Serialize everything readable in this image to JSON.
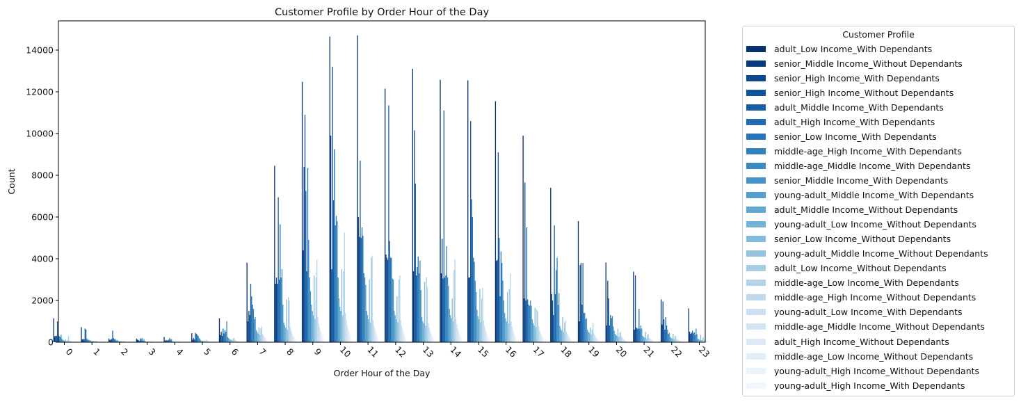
{
  "chart_data": {
    "type": "bar",
    "title": "Customer Profile by Order Hour of the Day",
    "xlabel": "Order Hour of the Day",
    "ylabel": "Count",
    "ylim": [
      0,
      15400
    ],
    "yticks": [
      "0",
      "2000",
      "4000",
      "6000",
      "8000",
      "10000",
      "12000",
      "14000"
    ],
    "categories": [
      "0",
      "1",
      "2",
      "3",
      "4",
      "5",
      "6",
      "7",
      "8",
      "9",
      "10",
      "11",
      "12",
      "13",
      "14",
      "15",
      "16",
      "17",
      "18",
      "19",
      "20",
      "21",
      "22",
      "23"
    ],
    "grid": false,
    "legend_position": "outside-right",
    "legend_title": "Customer Profile",
    "colormap": "Blues (reversed)",
    "series": [
      {
        "name": "adult_Low Income_With Dependants",
        "color": "#08306b",
        "values": [
          1150,
          720,
          170,
          170,
          250,
          430,
          1150,
          3810,
          8450,
          12480,
          14650,
          14700,
          12150,
          13100,
          12580,
          12550,
          11550,
          9900,
          7400,
          5800,
          3820,
          3380,
          2050,
          1620
        ]
      },
      {
        "name": "senior_Middle Income_Without Dependants",
        "color": "#0a3b7c",
        "values": [
          280,
          130,
          100,
          120,
          60,
          120,
          340,
          1000,
          2800,
          4400,
          9900,
          6000,
          4200,
          3400,
          3300,
          3100,
          3900,
          2100,
          2300,
          1000,
          800,
          600,
          850,
          500
        ]
      },
      {
        "name": "senior_High Income_With Dependants",
        "color": "#0c488e",
        "values": [
          300,
          150,
          130,
          100,
          110,
          200,
          500,
          1500,
          3100,
          8400,
          3500,
          5050,
          4050,
          10150,
          4950,
          3100,
          3950,
          7650,
          2000,
          3700,
          2950,
          3200,
          1950,
          400
        ]
      },
      {
        "name": "senior_High Income_Without Dependants",
        "color": "#11549b",
        "values": [
          300,
          130,
          150,
          60,
          80,
          130,
          300,
          1300,
          2800,
          10900,
          13200,
          8700,
          3950,
          7600,
          3050,
          10600,
          9100,
          2000,
          1300,
          3800,
          2100,
          700,
          1100,
          450
        ]
      },
      {
        "name": "adult_Middle Income_With Dependants",
        "color": "#175fa5",
        "values": [
          1000,
          650,
          550,
          180,
          90,
          450,
          650,
          2800,
          6950,
          7250,
          6800,
          5000,
          11350,
          3200,
          11100,
          6850,
          5000,
          5500,
          5600,
          1800,
          800,
          650,
          600,
          550
        ]
      },
      {
        "name": "adult_High Income_With Dependants",
        "color": "#1f6bae",
        "values": [
          350,
          600,
          200,
          120,
          120,
          400,
          420,
          2200,
          3000,
          3400,
          9250,
          5500,
          4850,
          3600,
          3100,
          6000,
          2200,
          2050,
          2300,
          3800,
          1300,
          650,
          1200,
          420
        ]
      },
      {
        "name": "senior_Low Income_With Dependants",
        "color": "#2776b8",
        "values": [
          280,
          170,
          140,
          200,
          200,
          350,
          580,
          1800,
          5650,
          8350,
          5600,
          5100,
          4050,
          4100,
          3200,
          4050,
          4350,
          1800,
          3450,
          1400,
          1150,
          1600,
          800,
          480
        ]
      },
      {
        "name": "middle-age_High Income_With Dependants",
        "color": "#3181bd",
        "values": [
          250,
          120,
          150,
          70,
          120,
          300,
          500,
          1600,
          3100,
          4900,
          6050,
          3300,
          4050,
          3300,
          4600,
          3850,
          3800,
          1750,
          4050,
          1400,
          1250,
          650,
          600,
          350
        ]
      },
      {
        "name": "middle-age_Middle Income_With Dependants",
        "color": "#3b8bc2",
        "values": [
          350,
          110,
          80,
          150,
          150,
          200,
          1000,
          1100,
          3500,
          3100,
          5800,
          3100,
          3050,
          3900,
          3100,
          2950,
          2950,
          2000,
          1800,
          1100,
          750,
          800,
          400,
          650
        ]
      },
      {
        "name": "senior_Middle Income_With Dependants",
        "color": "#4795c8",
        "values": [
          150,
          100,
          100,
          60,
          40,
          150,
          250,
          1200,
          1800,
          2450,
          3100,
          2750,
          3000,
          2500,
          2700,
          2400,
          2000,
          1750,
          2350,
          1150,
          550,
          650,
          450,
          380
        ]
      },
      {
        "name": "young-adult_Middle Income_With Dependants",
        "color": "#559fcd",
        "values": [
          120,
          70,
          60,
          30,
          30,
          80,
          200,
          580,
          950,
          1800,
          2100,
          1500,
          1500,
          1200,
          1600,
          1550,
          1400,
          1100,
          780,
          600,
          400,
          300,
          250,
          160
        ]
      },
      {
        "name": "adult_Middle Income_Without Dependants",
        "color": "#63a8d2",
        "values": [
          100,
          60,
          50,
          25,
          25,
          70,
          150,
          500,
          820,
          1500,
          1700,
          1300,
          1300,
          1000,
          1300,
          1250,
          1150,
          900,
          640,
          500,
          340,
          250,
          200,
          130
        ]
      },
      {
        "name": "young-adult_Low Income_Without Dependants",
        "color": "#74b2d7",
        "values": [
          60,
          40,
          30,
          15,
          15,
          50,
          120,
          420,
          700,
          1300,
          1500,
          1100,
          1100,
          900,
          1150,
          1100,
          1000,
          800,
          560,
          450,
          300,
          220,
          170,
          110
        ]
      },
      {
        "name": "senior_Low Income_Without Dependants",
        "color": "#85bbdb",
        "values": [
          130,
          60,
          50,
          30,
          30,
          80,
          120,
          700,
          2050,
          3200,
          3500,
          3000,
          2200,
          2900,
          2100,
          2550,
          2400,
          1650,
          1200,
          700,
          650,
          500,
          400,
          350
        ]
      },
      {
        "name": "young-adult_Middle Income_Without Dependants",
        "color": "#95c4df",
        "values": [
          50,
          30,
          25,
          12,
          12,
          40,
          100,
          350,
          600,
          1100,
          1300,
          950,
          950,
          800,
          1000,
          950,
          900,
          700,
          480,
          380,
          260,
          190,
          150,
          100
        ]
      },
      {
        "name": "adult_Low Income_Without Dependants",
        "color": "#a5cde3",
        "values": [
          100,
          50,
          40,
          25,
          25,
          70,
          180,
          650,
          2150,
          3100,
          3400,
          4050,
          3000,
          3100,
          3450,
          2100,
          2550,
          1550,
          950,
          600,
          450,
          350,
          300,
          200
        ]
      },
      {
        "name": "middle-age_Low Income_With Dependants",
        "color": "#b3d3e8",
        "values": [
          300,
          80,
          60,
          40,
          40,
          120,
          200,
          750,
          2000,
          3950,
          5250,
          4150,
          3200,
          2650,
          3950,
          2600,
          3300,
          1450,
          1050,
          950,
          500,
          400,
          300,
          240
        ]
      },
      {
        "name": "middle-age_High Income_Without Dependants",
        "color": "#c0daed",
        "values": [
          80,
          40,
          30,
          20,
          20,
          60,
          100,
          400,
          700,
          1200,
          1400,
          1050,
          1050,
          900,
          1100,
          1050,
          1000,
          750,
          520,
          420,
          280,
          210,
          160,
          110
        ]
      },
      {
        "name": "young-adult_Low Income_With Dependants",
        "color": "#cadff1",
        "values": [
          60,
          30,
          25,
          15,
          15,
          45,
          80,
          300,
          550,
          900,
          1050,
          800,
          800,
          700,
          850,
          800,
          750,
          560,
          400,
          320,
          210,
          160,
          120,
          90
        ]
      },
      {
        "name": "middle-age_Middle Income_Without Dependants",
        "color": "#d4e4f4",
        "values": [
          40,
          20,
          15,
          10,
          10,
          30,
          60,
          230,
          420,
          700,
          800,
          620,
          620,
          540,
          650,
          620,
          580,
          430,
          310,
          250,
          170,
          130,
          100,
          70
        ]
      },
      {
        "name": "adult_High Income_Without Dependants",
        "color": "#dde9f6",
        "values": [
          30,
          15,
          12,
          8,
          8,
          25,
          50,
          180,
          320,
          550,
          620,
          480,
          480,
          420,
          500,
          480,
          450,
          330,
          240,
          190,
          130,
          100,
          80,
          55
        ]
      },
      {
        "name": "middle-age_Low Income_Without Dependants",
        "color": "#e4eef8",
        "values": [
          20,
          12,
          10,
          6,
          6,
          18,
          35,
          130,
          240,
          400,
          460,
          360,
          360,
          310,
          380,
          360,
          340,
          250,
          180,
          140,
          100,
          75,
          60,
          40
        ]
      },
      {
        "name": "young-adult_High Income_Without Dependants",
        "color": "#ebf3fa",
        "values": [
          15,
          8,
          6,
          4,
          4,
          12,
          25,
          90,
          170,
          290,
          330,
          260,
          260,
          220,
          270,
          260,
          240,
          180,
          130,
          100,
          70,
          55,
          45,
          30
        ]
      },
      {
        "name": "young-adult_High Income_With Dependants",
        "color": "#f2f7fd",
        "values": [
          10,
          5,
          4,
          3,
          3,
          8,
          15,
          60,
          110,
          190,
          220,
          170,
          170,
          150,
          180,
          170,
          160,
          120,
          85,
          65,
          45,
          35,
          30,
          20
        ]
      }
    ]
  }
}
